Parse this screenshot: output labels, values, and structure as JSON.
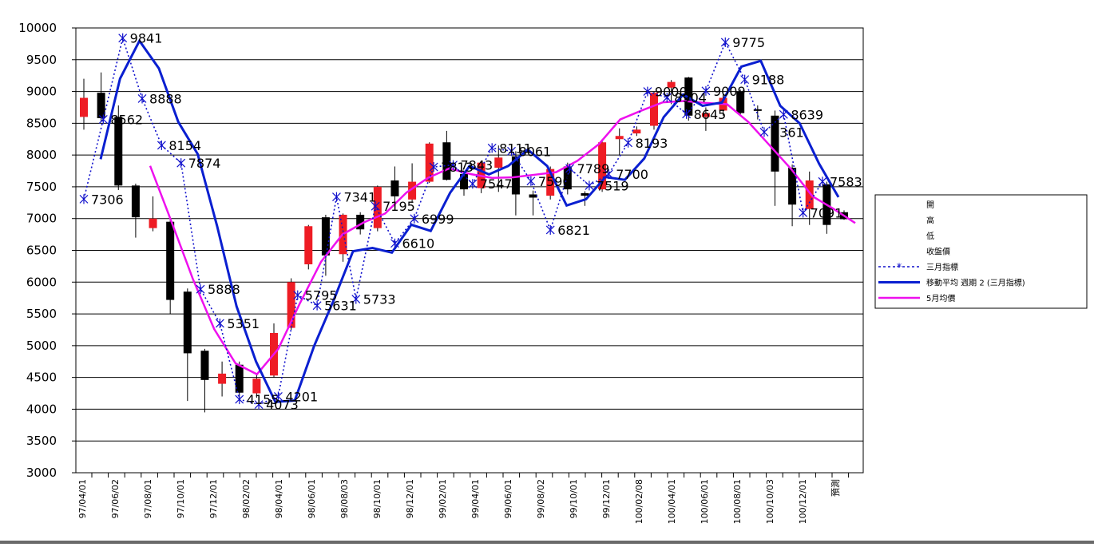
{
  "chart_data": {
    "type": "candlestick",
    "ylim": [
      3000,
      10000
    ],
    "ytick_step": 500,
    "yticks": [
      "10000",
      "9500",
      "9000",
      "8500",
      "8000",
      "7500",
      "7000",
      "6500",
      "6000",
      "5500",
      "5000",
      "4500",
      "4000",
      "3500",
      "3000"
    ],
    "grid": true,
    "legend_position": "right",
    "x_labels": [
      "97/04/01",
      "97/06/02",
      "97/08/01",
      "97/10/01",
      "97/12/01",
      "98/02/02",
      "98/04/01",
      "98/06/01",
      "98/08/03",
      "98/10/01",
      "98/12/01",
      "99/02/01",
      "99/04/01",
      "99/06/01",
      "99/08/02",
      "99/10/01",
      "99/12/01",
      "100/02/08",
      "100/04/01",
      "100/06/01",
      "100/08/01",
      "100/10/03",
      "100/12/01",
      "預測"
    ],
    "candles": [
      {
        "o": 8600,
        "h": 9200,
        "l": 8400,
        "c": 8900
      },
      {
        "o": 8980,
        "h": 9300,
        "l": 8520,
        "c": 8580
      },
      {
        "o": 8600,
        "h": 8780,
        "l": 7450,
        "c": 7520
      },
      {
        "o": 7520,
        "h": 7550,
        "l": 6700,
        "c": 7020
      },
      {
        "o": 6850,
        "h": 7350,
        "l": 6800,
        "c": 7000
      },
      {
        "o": 6950,
        "h": 7000,
        "l": 5500,
        "c": 5720
      },
      {
        "o": 5850,
        "h": 5900,
        "l": 4130,
        "c": 4880
      },
      {
        "o": 4920,
        "h": 4950,
        "l": 3950,
        "c": 4460
      },
      {
        "o": 4400,
        "h": 4750,
        "l": 4200,
        "c": 4560
      },
      {
        "o": 4700,
        "h": 4750,
        "l": 4180,
        "c": 4260
      },
      {
        "o": 4250,
        "h": 4550,
        "l": 4180,
        "c": 4480
      },
      {
        "o": 4530,
        "h": 5350,
        "l": 4500,
        "c": 5200
      },
      {
        "o": 5280,
        "h": 6060,
        "l": 5250,
        "c": 6000
      },
      {
        "o": 6280,
        "h": 6900,
        "l": 6200,
        "c": 6880
      },
      {
        "o": 7020,
        "h": 7060,
        "l": 6100,
        "c": 6420
      },
      {
        "o": 6440,
        "h": 7080,
        "l": 6320,
        "c": 7060
      },
      {
        "o": 7060,
        "h": 7100,
        "l": 6750,
        "c": 6830
      },
      {
        "o": 6850,
        "h": 7520,
        "l": 6800,
        "c": 7500
      },
      {
        "o": 7600,
        "h": 7820,
        "l": 7200,
        "c": 7350
      },
      {
        "o": 7300,
        "h": 7870,
        "l": 7250,
        "c": 7580
      },
      {
        "o": 7580,
        "h": 8200,
        "l": 7560,
        "c": 8180
      },
      {
        "o": 8200,
        "h": 8380,
        "l": 7600,
        "c": 7610
      },
      {
        "o": 7700,
        "h": 7720,
        "l": 7360,
        "c": 7460
      },
      {
        "o": 7480,
        "h": 7900,
        "l": 7400,
        "c": 7880
      },
      {
        "o": 7800,
        "h": 8150,
        "l": 7420,
        "c": 7960
      },
      {
        "o": 7980,
        "h": 8060,
        "l": 7050,
        "c": 7380
      },
      {
        "o": 7380,
        "h": 7440,
        "l": 7050,
        "c": 7330
      },
      {
        "o": 7360,
        "h": 7820,
        "l": 7300,
        "c": 7780
      },
      {
        "o": 7820,
        "h": 7880,
        "l": 7380,
        "c": 7460
      },
      {
        "o": 7400,
        "h": 7430,
        "l": 7200,
        "c": 7360
      },
      {
        "o": 7460,
        "h": 8250,
        "l": 7420,
        "c": 8200
      },
      {
        "o": 8250,
        "h": 8420,
        "l": 8000,
        "c": 8300
      },
      {
        "o": 8340,
        "h": 8450,
        "l": 8300,
        "c": 8400
      },
      {
        "o": 8460,
        "h": 9000,
        "l": 8400,
        "c": 8980
      },
      {
        "o": 9060,
        "h": 9180,
        "l": 8800,
        "c": 9150
      },
      {
        "o": 9220,
        "h": 9230,
        "l": 8540,
        "c": 8620
      },
      {
        "o": 8600,
        "h": 8750,
        "l": 8380,
        "c": 8660
      },
      {
        "o": 8700,
        "h": 8950,
        "l": 8620,
        "c": 8900
      },
      {
        "o": 9000,
        "h": 9030,
        "l": 8620,
        "c": 8660
      },
      {
        "o": 8720,
        "h": 8780,
        "l": 8560,
        "c": 8700
      },
      {
        "o": 8620,
        "h": 8700,
        "l": 7200,
        "c": 7740
      },
      {
        "o": 7800,
        "h": 7850,
        "l": 6880,
        "c": 7220
      },
      {
        "o": 7150,
        "h": 7740,
        "l": 6900,
        "c": 7600
      },
      {
        "o": 7540,
        "h": 7580,
        "l": 6760,
        "c": 6900
      },
      {
        "o": 7100,
        "h": 7130,
        "l": 6980,
        "c": 6990
      }
    ],
    "series": [
      {
        "name": "三月指標",
        "values": [
          7306,
          8562,
          9841,
          8888,
          8154,
          7874,
          5888,
          5351,
          4155,
          4073,
          4201,
          5795,
          5631,
          7341,
          5733,
          7195,
          6610,
          6999,
          7813,
          7843,
          7547,
          8111,
          8061,
          7590,
          6821,
          7789,
          7519,
          7700,
          8193,
          9000,
          8904,
          8645,
          9009,
          9775,
          9188,
          8361,
          8639,
          7091,
          7583
        ],
        "labels": [
          "7306",
          "8562",
          "9841",
          "8888",
          "8154",
          "7874",
          "5888",
          "5351",
          "4155",
          "4073",
          "4201",
          "5795",
          "5631",
          "7341",
          "5733",
          "7195",
          "6610",
          "6999",
          "7813",
          "7843",
          "7547",
          "8111",
          "8061",
          "7590",
          "6821",
          "7789",
          "7519",
          "7700",
          "8193",
          "9000",
          "8904",
          "8645",
          "9009",
          "9775",
          "9188",
          "8361",
          "8639",
          "7091",
          "7583"
        ],
        "color": "#1010cc"
      },
      {
        "name": "移動平均 週期 2 (三月指標)",
        "values": [
          7934,
          9201,
          9797,
          9364,
          8521,
          8014,
          6881,
          5620,
          4753,
          4114,
          4137,
          4998,
          5713,
          6486,
          6537,
          6464,
          6903,
          6805,
          7406,
          7828,
          7695,
          7829,
          8086,
          7826,
          7206,
          7305,
          7654,
          7610,
          7947,
          8597,
          8952,
          8775,
          8827,
          9392,
          9482,
          8775,
          8500,
          7865,
          7337
        ],
        "color": "#0a1fd0"
      },
      {
        "name": "5月均價",
        "values": [
          7830,
          6950,
          6050,
          5260,
          4720,
          4550,
          4950,
          5660,
          6320,
          6750,
          6940,
          7080,
          7410,
          7640,
          7790,
          7700,
          7640,
          7650,
          7690,
          7730,
          7910,
          8170,
          8560,
          8700,
          8830,
          8850,
          8820,
          8800,
          8520,
          8150,
          7780,
          7350,
          7150,
          6930
        ],
        "color": "#ee10ee"
      }
    ],
    "legend": [
      {
        "label": "開",
        "kind": "none"
      },
      {
        "label": "高",
        "kind": "none"
      },
      {
        "label": "低",
        "kind": "none"
      },
      {
        "label": "收盤價",
        "kind": "none"
      },
      {
        "label": "三月指標",
        "kind": "dotted"
      },
      {
        "label": "移動平均 週期 2 (三月指標)",
        "kind": "solid-blue"
      },
      {
        "label": "5月均價",
        "kind": "solid-magenta"
      }
    ],
    "colors": {
      "up": "#ee1c24",
      "down": "#000000",
      "grid": "#000000"
    }
  }
}
